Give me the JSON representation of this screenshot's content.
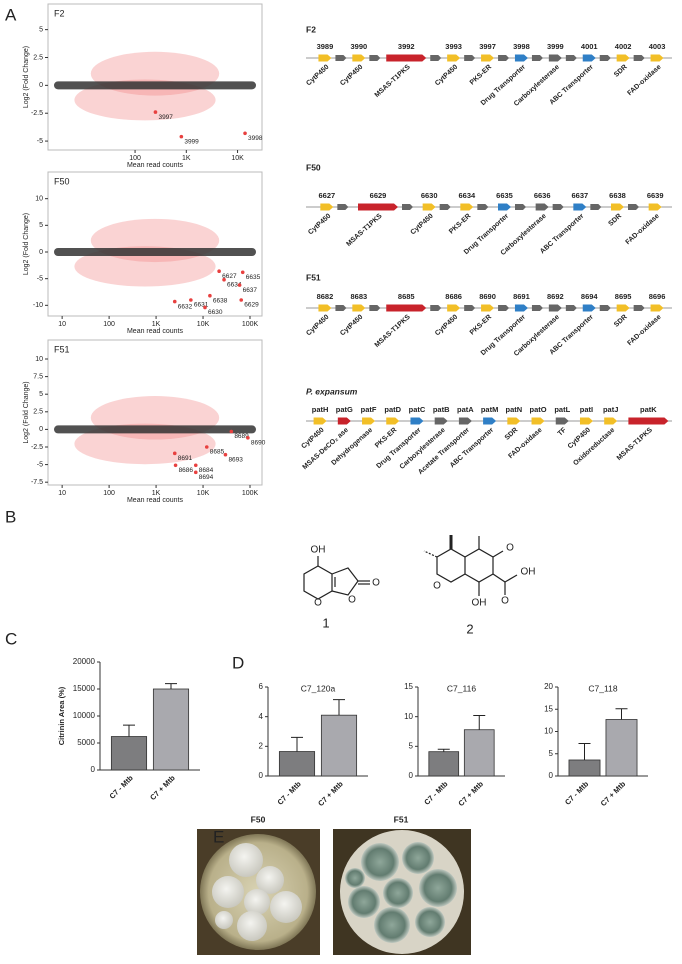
{
  "panel_labels": [
    "A",
    "B",
    "C",
    "D",
    "E"
  ],
  "ma_plots": [
    {
      "title": "F2",
      "y_label": "Log2 (Fold Change)",
      "x_label": "Mean read counts",
      "log_x": true,
      "xlim": [
        2,
        30000
      ],
      "ylim": [
        -5.8,
        7.3
      ],
      "xticks": [
        100,
        {
          "value": 1000,
          "label": "1K"
        },
        {
          "value": 10000,
          "label": "10K"
        }
      ],
      "yticks": [
        5,
        2.5,
        0,
        -2.5,
        -5
      ],
      "highlights": [
        {
          "label": "3997",
          "x": 250,
          "y": -2.4
        },
        {
          "label": "3999",
          "x": 800,
          "y": -4.6
        },
        {
          "label": "3998",
          "x": 14000,
          "y": -4.3
        }
      ]
    },
    {
      "title": "F50",
      "y_label": "Log2 (Fold Change)",
      "x_label": "Mean read counts",
      "log_x": true,
      "xlim": [
        5,
        180000
      ],
      "ylim": [
        -12,
        15
      ],
      "xticks": [
        10,
        100,
        {
          "value": 1000,
          "label": "1K"
        },
        {
          "value": 10000,
          "label": "10K"
        },
        {
          "value": 100000,
          "label": "100K"
        }
      ],
      "yticks": [
        10,
        5,
        0,
        -5,
        -10
      ],
      "highlights": [
        {
          "label": "6627",
          "x": 22000,
          "y": -3.6
        },
        {
          "label": "6635",
          "x": 70000,
          "y": -3.8
        },
        {
          "label": "6634",
          "x": 28000,
          "y": -5.2
        },
        {
          "label": "6637",
          "x": 60000,
          "y": -6.2
        },
        {
          "label": "6629",
          "x": 65000,
          "y": -9
        },
        {
          "label": "6638",
          "x": 14000,
          "y": -8.2
        },
        {
          "label": "6632",
          "x": 2500,
          "y": -9.3
        },
        {
          "label": "6631",
          "x": 5500,
          "y": -9
        },
        {
          "label": "6630",
          "x": 11000,
          "y": -10.4
        }
      ]
    },
    {
      "title": "F51",
      "y_label": "Log2 (Fold Change)",
      "x_label": "Mean read counts",
      "log_x": true,
      "xlim": [
        5,
        180000
      ],
      "ylim": [
        -7.9,
        12.7
      ],
      "xticks": [
        10,
        100,
        {
          "value": 1000,
          "label": "1K"
        },
        {
          "value": 10000,
          "label": "10K"
        },
        {
          "value": 100000,
          "label": "100K"
        }
      ],
      "yticks": [
        10,
        7.5,
        5,
        2.5,
        0,
        -2.5,
        -5,
        -7.5
      ],
      "highlights": [
        {
          "label": "8689",
          "x": 40000,
          "y": -0.3
        },
        {
          "label": "8690",
          "x": 90000,
          "y": -1.2
        },
        {
          "label": "8685",
          "x": 12000,
          "y": -2.5
        },
        {
          "label": "8693",
          "x": 30000,
          "y": -3.6
        },
        {
          "label": "8691",
          "x": 2500,
          "y": -3.4
        },
        {
          "label": "8686",
          "x": 2600,
          "y": -5.1
        },
        {
          "label": "8684",
          "x": 7000,
          "y": -5.1
        },
        {
          "label": "8694",
          "x": 7000,
          "y": -6.1
        }
      ]
    }
  ],
  "gene_clusters": [
    {
      "name": "F2",
      "genes": [
        {
          "id": "3989",
          "label": "CytP450"
        },
        {
          "id": "3990",
          "label": "CytP450"
        },
        {
          "id": "3992",
          "label": "MSAS-T1PKS"
        },
        {
          "id": "3993",
          "label": "CytP450"
        },
        {
          "id": "3997",
          "label": "PKS-ER"
        },
        {
          "id": "3998",
          "label": "Drug Transporter"
        },
        {
          "id": "3999",
          "label": "Carboxylesterase"
        },
        {
          "id": "4001",
          "label": "ABC Transporter"
        },
        {
          "id": "4002",
          "label": "SDR"
        },
        {
          "id": "4003",
          "label": "FAD-oxidase"
        }
      ]
    },
    {
      "name": "F50",
      "genes": [
        {
          "id": "6627",
          "label": "CytP450"
        },
        {
          "id": "6629",
          "label": "MSAS-T1PKS"
        },
        {
          "id": "6630",
          "label": "CytP450"
        },
        {
          "id": "6634",
          "label": "PKS-ER"
        },
        {
          "id": "6635",
          "label": "Drug Transporter"
        },
        {
          "id": "6636",
          "label": "Carboxylesterase"
        },
        {
          "id": "6637",
          "label": "ABC Transporter"
        },
        {
          "id": "6638",
          "label": "SDR"
        },
        {
          "id": "6639",
          "label": "FAD-oxidase"
        }
      ]
    },
    {
      "name": "F51",
      "genes": [
        {
          "id": "8682",
          "label": "CytP450"
        },
        {
          "id": "8683",
          "label": "CytP450"
        },
        {
          "id": "8685",
          "label": "MSAS-T1PKS"
        },
        {
          "id": "8686",
          "label": "CytP450"
        },
        {
          "id": "8690",
          "label": "PKS-ER"
        },
        {
          "id": "8691",
          "label": "Drug Transporter"
        },
        {
          "id": "8692",
          "label": "Carboxylesterase"
        },
        {
          "id": "8694",
          "label": "ABC Transporter"
        },
        {
          "id": "8695",
          "label": "SDR"
        },
        {
          "id": "8696",
          "label": "FAD-oxidase"
        }
      ]
    },
    {
      "name": "P. expansum",
      "genes": [
        {
          "id": "patH",
          "label": "CytP450"
        },
        {
          "id": "patG",
          "label": "MSAS-DeCO₂ ase"
        },
        {
          "id": "patF",
          "label": "Dehydrogenase"
        },
        {
          "id": "patD",
          "label": "PKS-ER"
        },
        {
          "id": "patC",
          "label": "Drug Transporter"
        },
        {
          "id": "patB",
          "label": "Carboxylesterase"
        },
        {
          "id": "patA",
          "label": "Acetate Transporter"
        },
        {
          "id": "patM",
          "label": "ABC Transporter"
        },
        {
          "id": "patN",
          "label": "SDR"
        },
        {
          "id": "patO",
          "label": "FAD-oxidase"
        },
        {
          "id": "patL",
          "label": "TF"
        },
        {
          "id": "patI",
          "label": "CytP450"
        },
        {
          "id": "patJ",
          "label": "Oxidoreductase"
        },
        {
          "id": "patK",
          "label": "MSAS-T1PKS"
        }
      ]
    }
  ],
  "structures": {
    "labels": [
      "1",
      "2"
    ],
    "atoms_1": [
      "OH",
      "O",
      "O",
      "O"
    ],
    "atoms_2": [
      "O",
      "O",
      "OH",
      "O",
      "OH"
    ]
  },
  "chart_data": [
    {
      "type": "bar",
      "y_label": "Citrinin Area (%)",
      "categories": [
        "C7 - Mtb",
        "C7 + Mtb"
      ],
      "values": [
        6200,
        15000
      ],
      "errors": [
        2100,
        1000
      ],
      "colors": [
        "#7d7d7f",
        "#a9a9ae"
      ],
      "ylim": [
        0,
        20000
      ],
      "yticks": [
        0,
        5000,
        10000,
        15000,
        20000
      ]
    },
    {
      "type": "bar",
      "title": "C7_120a",
      "categories": [
        "C7 - Mtb",
        "C7 + Mtb"
      ],
      "values": [
        1.65,
        4.1
      ],
      "errors": [
        0.95,
        1.05
      ],
      "colors": [
        "#7d7d7f",
        "#a9a9ae"
      ],
      "ylim": [
        0,
        6
      ],
      "yticks": [
        0,
        2,
        4,
        6
      ]
    },
    {
      "type": "bar",
      "title": "C7_116",
      "categories": [
        "C7 - Mtb",
        "C7 + Mtb"
      ],
      "values": [
        4.1,
        7.8
      ],
      "errors": [
        0.4,
        2.4
      ],
      "colors": [
        "#7d7d7f",
        "#a9a9ae"
      ],
      "ylim": [
        0,
        15
      ],
      "yticks": [
        0,
        5,
        10,
        15
      ]
    },
    {
      "type": "bar",
      "title": "C7_118",
      "categories": [
        "C7 - Mtb",
        "C7 + Mtb"
      ],
      "values": [
        3.6,
        12.7
      ],
      "errors": [
        3.7,
        2.4
      ],
      "colors": [
        "#7d7d7f",
        "#a9a9ae"
      ],
      "ylim": [
        0,
        20
      ],
      "yticks": [
        0,
        5,
        10,
        15,
        20
      ]
    }
  ],
  "plates": [
    "F50",
    "F51"
  ]
}
